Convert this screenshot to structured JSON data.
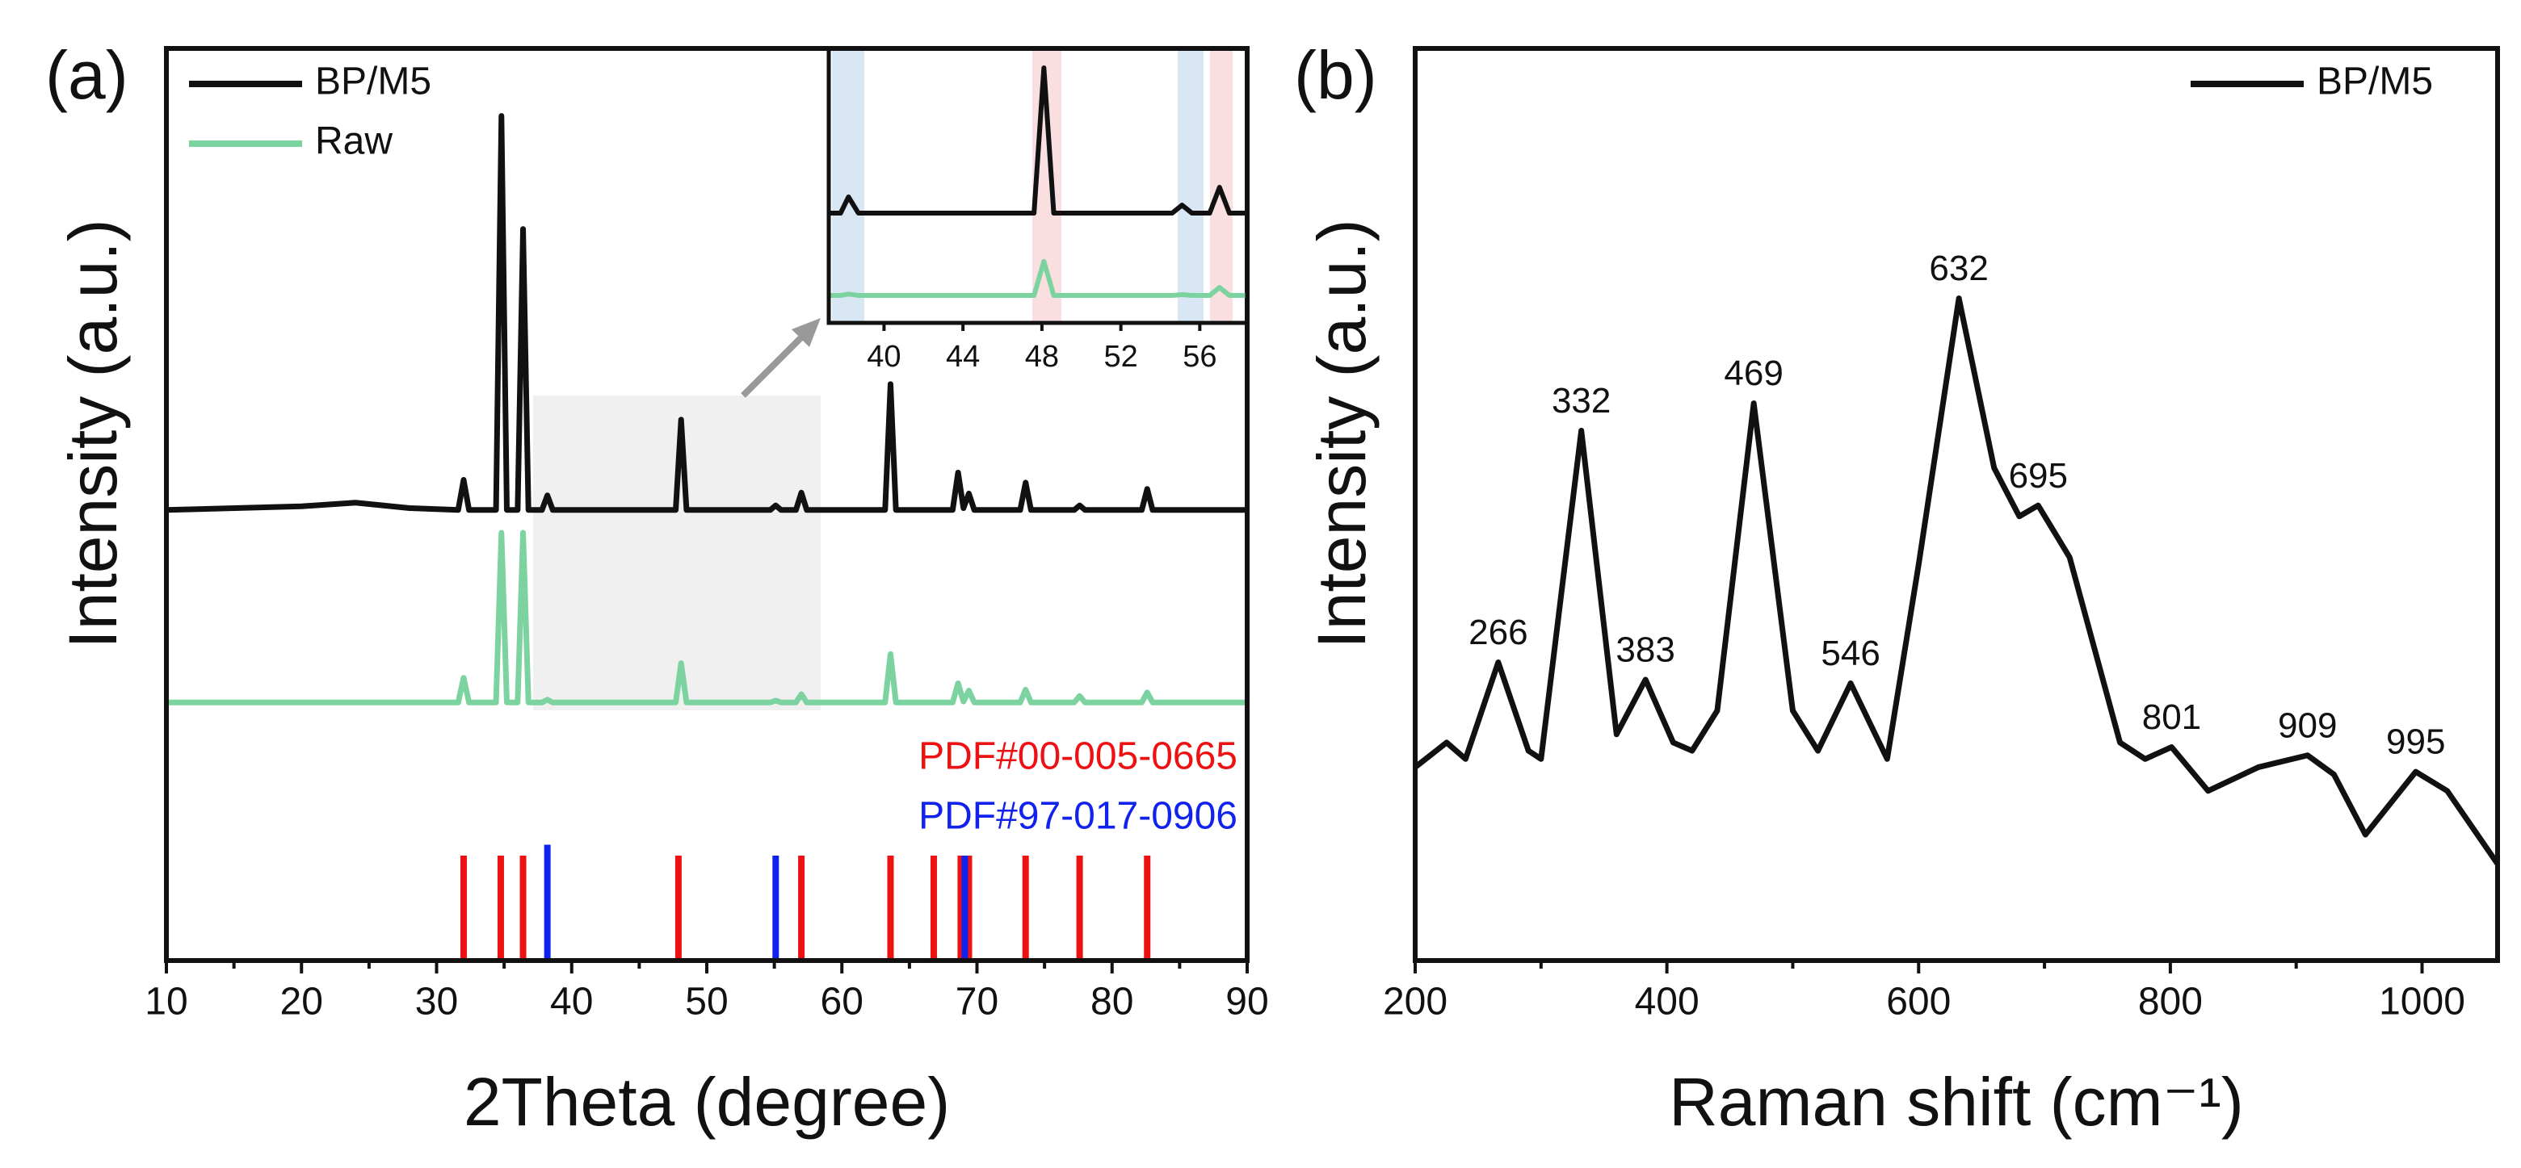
{
  "chart_data": [
    {
      "type": "line",
      "panel_label": "(a)",
      "xlabel": "2Theta (degree)",
      "ylabel": "Intensity (a.u.)",
      "xlim": [
        10,
        90
      ],
      "xticks": [
        10,
        20,
        30,
        40,
        50,
        60,
        70,
        80,
        90
      ],
      "ylim": [
        0,
        100
      ],
      "legend": "upper left",
      "x": [
        10,
        20,
        24,
        28,
        31.6,
        32,
        32.4,
        34.4,
        34.8,
        35.2,
        36.0,
        36.4,
        36.8,
        37.8,
        38.2,
        38.6,
        47.7,
        48.1,
        48.5,
        54.7,
        55.1,
        55.5,
        56.6,
        57,
        57.4,
        63.2,
        63.6,
        64,
        68.2,
        68.6,
        69.0,
        69.4,
        69.8,
        73.2,
        73.6,
        74,
        77.2,
        77.6,
        78,
        82.2,
        82.6,
        83,
        90
      ],
      "series": [
        {
          "name": "BP/M5",
          "color": "#111111",
          "values": [
            49.4,
            49.8,
            50.2,
            49.6,
            49.4,
            52.7,
            49.4,
            49.4,
            92.6,
            49.4,
            49.4,
            80.2,
            49.4,
            49.4,
            51.0,
            49.4,
            49.4,
            59.3,
            49.4,
            49.4,
            49.9,
            49.4,
            49.4,
            51.3,
            49.4,
            49.4,
            63.2,
            49.4,
            49.4,
            53.5,
            49.6,
            51.2,
            49.4,
            49.4,
            52.4,
            49.4,
            49.4,
            49.9,
            49.4,
            49.4,
            51.7,
            49.4,
            49.4
          ]
        },
        {
          "name": "Raw",
          "color": "#7dd3a0",
          "values": [
            28.3,
            28.3,
            28.3,
            28.3,
            28.3,
            31,
            28.3,
            28.3,
            46.9,
            28.3,
            28.3,
            46.9,
            28.3,
            28.3,
            28.6,
            28.3,
            28.3,
            32.6,
            28.3,
            28.3,
            28.5,
            28.3,
            28.3,
            29.2,
            28.3,
            28.3,
            33.6,
            28.3,
            28.3,
            30.4,
            28.4,
            29.6,
            28.3,
            28.3,
            29.7,
            28.3,
            28.3,
            29.0,
            28.3,
            28.3,
            29.4,
            28.3,
            28.3
          ]
        }
      ],
      "references": [
        {
          "name": "PDF#00-005-0665",
          "color": "#ee1111",
          "positions": [
            32.0,
            34.75,
            36.4,
            47.9,
            57.0,
            63.6,
            66.8,
            68.8,
            69.4,
            73.6,
            77.6,
            82.6
          ],
          "values": [
            11.5,
            11.5,
            11.5,
            11.5,
            11.5,
            11.5,
            11.5,
            11.5,
            11.5,
            11.5,
            11.5,
            11.5
          ]
        },
        {
          "name": "PDF#97-017-0906",
          "color": "#1122ee",
          "positions": [
            38.2,
            55.1,
            69.1
          ],
          "values": [
            12.7,
            11.5,
            11.5
          ]
        }
      ]
    },
    {
      "type": "line",
      "xlim": [
        37.2,
        58.4
      ],
      "xticks": [
        40,
        44,
        48,
        52,
        56
      ],
      "ylim": [
        0,
        100
      ],
      "x": [
        37.2,
        37.8,
        38.2,
        38.7,
        47.6,
        48.1,
        48.6,
        54.6,
        55.1,
        55.6,
        56.5,
        57,
        57.5,
        58.4
      ],
      "series": [
        {
          "color": "#111111",
          "values": [
            40,
            40,
            45.9,
            40,
            40,
            92.9,
            40,
            40,
            42.9,
            40,
            40,
            49.4,
            40,
            40
          ]
        },
        {
          "color": "#7dd3a0",
          "values": [
            10,
            10,
            10.5,
            10,
            10,
            22.4,
            10,
            10,
            10.3,
            10,
            10,
            12.9,
            10,
            10
          ]
        }
      ]
    },
    {
      "type": "line",
      "panel_label": "(b)",
      "xlabel": "Raman shift (cm⁻¹)",
      "ylabel": "Intensity (a.u.)",
      "xlim": [
        200,
        1060
      ],
      "xticks": [
        200,
        400,
        600,
        800,
        1000
      ],
      "ylim": [
        0,
        100
      ],
      "legend": "upper right",
      "x": [
        200,
        225,
        240,
        266,
        290,
        300,
        332,
        360,
        383,
        405,
        420,
        440,
        469,
        500,
        520,
        546,
        575,
        600,
        632,
        660,
        680,
        695,
        720,
        760,
        780,
        801,
        830,
        870,
        909,
        930,
        955,
        995,
        1020,
        1060
      ],
      "series": [
        {
          "name": "BP/M5",
          "color": "#111111",
          "values": [
            21.2,
            23.9,
            22.1,
            32.7,
            23.0,
            22.1,
            58.1,
            24.8,
            30.8,
            23.9,
            23.0,
            27.4,
            61.1,
            27.4,
            23.0,
            30.4,
            22.1,
            43.4,
            72.6,
            54.0,
            48.7,
            49.9,
            44.2,
            23.9,
            22.1,
            23.4,
            18.6,
            21.2,
            22.5,
            20.4,
            13.8,
            20.7,
            18.6,
            10.6
          ]
        }
      ],
      "peak_labels": [
        266,
        332,
        383,
        469,
        546,
        632,
        695,
        801,
        909,
        995
      ]
    }
  ]
}
